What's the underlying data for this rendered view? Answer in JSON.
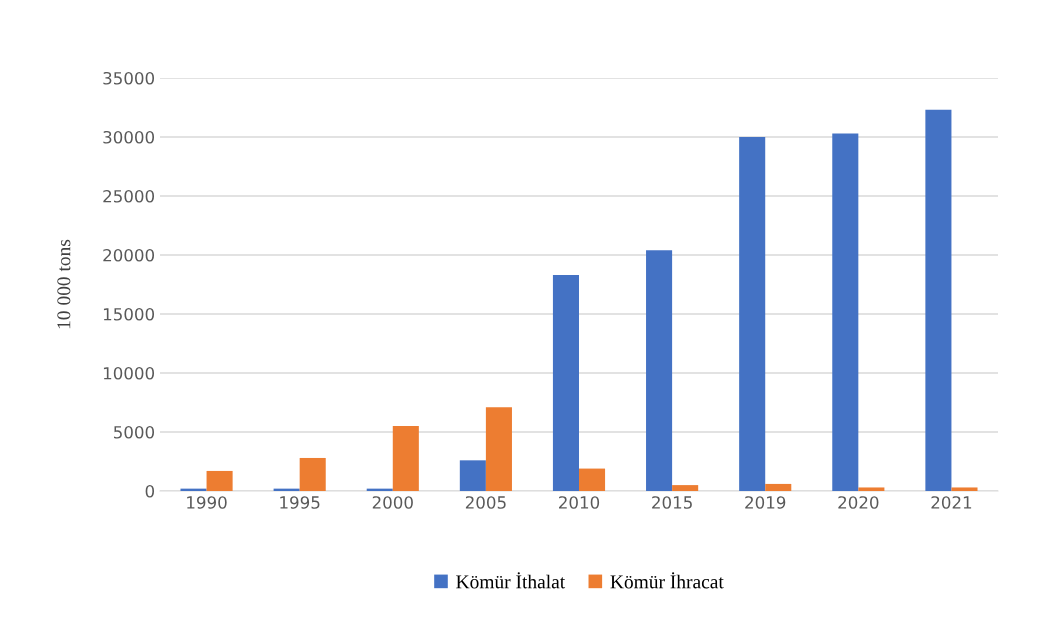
{
  "chart_data": {
    "type": "bar",
    "ylabel": "10 000 tons",
    "categories": [
      "1990",
      "1995",
      "2000",
      "2005",
      "2010",
      "2015",
      "2019",
      "2020",
      "2021"
    ],
    "series": [
      {
        "name": "Kömür İthalat",
        "color": "#4472c4",
        "values": [
          200,
          200,
          200,
          2600,
          18300,
          20400,
          30000,
          30300,
          32300
        ]
      },
      {
        "name": "Kömür İhracat",
        "color": "#ed7d31",
        "values": [
          1700,
          2800,
          5500,
          7100,
          1900,
          500,
          600,
          300,
          300
        ]
      }
    ],
    "ylim": [
      0,
      35000
    ],
    "yticks": [
      0,
      5000,
      10000,
      15000,
      20000,
      25000,
      30000,
      35000
    ],
    "grid": "y",
    "legend": "bottom"
  }
}
